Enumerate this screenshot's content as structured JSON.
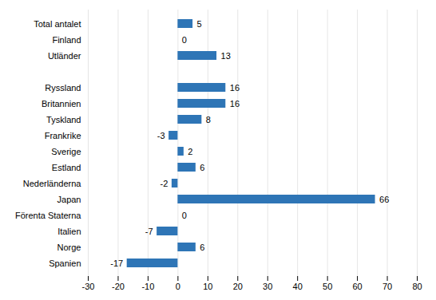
{
  "chart_data": {
    "type": "bar",
    "orientation": "horizontal",
    "categories": [
      "Total antalet",
      "Finland",
      "Utländer",
      null,
      "Ryssland",
      "Britannien",
      "Tyskland",
      "Frankrike",
      "Sverige",
      "Estland",
      "Nederländerna",
      "Japan",
      "Förenta Staterna",
      "Italien",
      "Norge",
      "Spanien"
    ],
    "values": [
      5,
      0,
      13,
      null,
      16,
      16,
      8,
      -3,
      2,
      6,
      -2,
      66,
      0,
      -7,
      6,
      -17
    ],
    "color": "#2E75B6",
    "xlim": [
      -30,
      80
    ],
    "xticks": [
      -30,
      -20,
      -10,
      0,
      10,
      20,
      30,
      40,
      50,
      60,
      70,
      80
    ],
    "grid": true,
    "data_labels": true
  }
}
